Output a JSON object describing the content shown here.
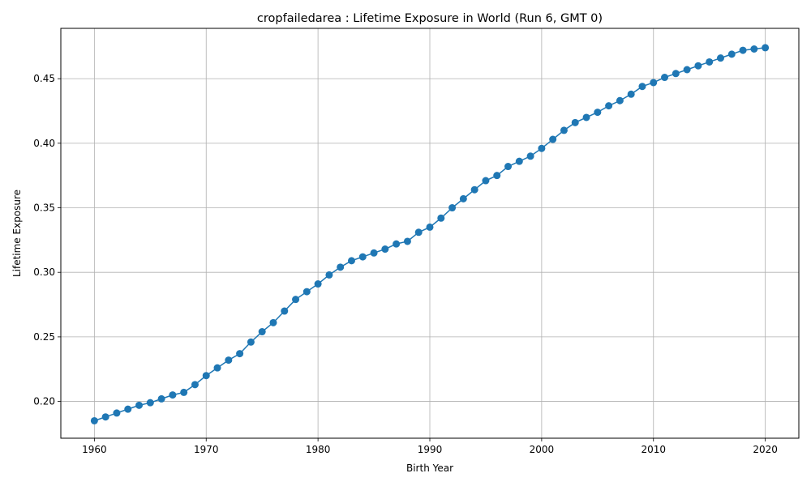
{
  "chart_data": {
    "type": "line",
    "title": "cropfailedarea : Lifetime Exposure in World (Run 6, GMT 0)",
    "xlabel": "Birth Year",
    "ylabel": "Lifetime Exposure",
    "xlim": [
      1957,
      2023
    ],
    "ylim": [
      0.1715,
      0.489
    ],
    "xticks": [
      1960,
      1970,
      1980,
      1990,
      2000,
      2010,
      2020
    ],
    "yticks": [
      0.2,
      0.25,
      0.3,
      0.35,
      0.4,
      0.45
    ],
    "ytick_labels": [
      "0.20",
      "0.25",
      "0.30",
      "0.35",
      "0.40",
      "0.45"
    ],
    "grid": true,
    "legend": "none",
    "series": [
      {
        "color": "#1f77b4",
        "marker": "circle",
        "x": [
          1960,
          1961,
          1962,
          1963,
          1964,
          1965,
          1966,
          1967,
          1968,
          1969,
          1970,
          1971,
          1972,
          1973,
          1974,
          1975,
          1976,
          1977,
          1978,
          1979,
          1980,
          1981,
          1982,
          1983,
          1984,
          1985,
          1986,
          1987,
          1988,
          1989,
          1990,
          1991,
          1992,
          1993,
          1994,
          1995,
          1996,
          1997,
          1998,
          1999,
          2000,
          2001,
          2002,
          2003,
          2004,
          2005,
          2006,
          2007,
          2008,
          2009,
          2010,
          2011,
          2012,
          2013,
          2014,
          2015,
          2016,
          2017,
          2018,
          2019,
          2020
        ],
        "values": [
          0.185,
          0.188,
          0.191,
          0.194,
          0.197,
          0.199,
          0.202,
          0.205,
          0.207,
          0.213,
          0.22,
          0.226,
          0.232,
          0.237,
          0.246,
          0.254,
          0.261,
          0.27,
          0.279,
          0.285,
          0.291,
          0.298,
          0.304,
          0.309,
          0.312,
          0.315,
          0.318,
          0.322,
          0.324,
          0.331,
          0.335,
          0.342,
          0.35,
          0.357,
          0.364,
          0.371,
          0.375,
          0.382,
          0.386,
          0.39,
          0.396,
          0.403,
          0.41,
          0.416,
          0.42,
          0.424,
          0.429,
          0.433,
          0.438,
          0.444,
          0.447,
          0.451,
          0.454,
          0.457,
          0.46,
          0.463,
          0.466,
          0.469,
          0.472,
          0.473,
          0.474
        ]
      }
    ]
  }
}
